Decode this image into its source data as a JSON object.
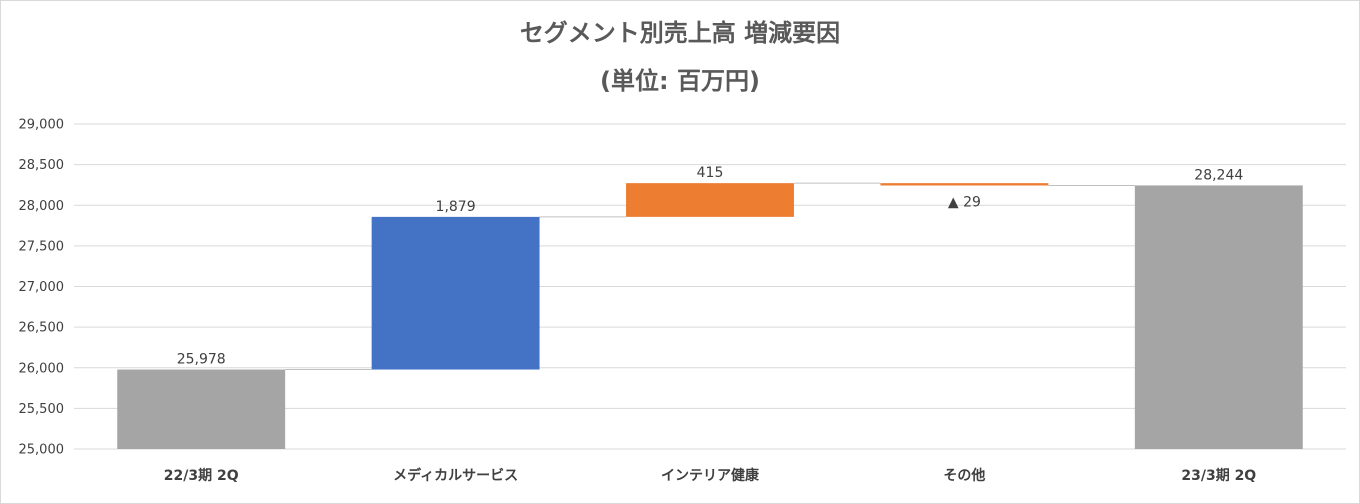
{
  "chart_data": {
    "type": "waterfall",
    "title": "セグメント別売上高 増減要因",
    "subtitle": "(単位: 百万円)",
    "categories": [
      "22/3期 2Q",
      "メディカルサービス",
      "インテリア健康",
      "その他",
      "23/3期 2Q"
    ],
    "values": [
      25978,
      1879,
      415,
      -29,
      28244
    ],
    "bar_kinds": [
      "total",
      "increase",
      "increase",
      "decrease",
      "total"
    ],
    "data_labels": [
      "25,978",
      "1,879",
      "415",
      "▲ 29",
      "28,244"
    ],
    "ylim": [
      25000,
      29000
    ],
    "yticks": [
      "25,000",
      "25,500",
      "26,000",
      "26,500",
      "27,000",
      "27,500",
      "28,000",
      "28,500",
      "29,000"
    ],
    "ytick_values": [
      25000,
      25500,
      26000,
      26500,
      27000,
      27500,
      28000,
      28500,
      29000
    ],
    "grid": true,
    "colors": {
      "total": "#a5a5a5",
      "first_increase": "#4472c4",
      "increase": "#ed7d31",
      "decrease": "#ed7d31",
      "grid": "#d9d9d9",
      "connector": "#c0c0c0"
    }
  }
}
